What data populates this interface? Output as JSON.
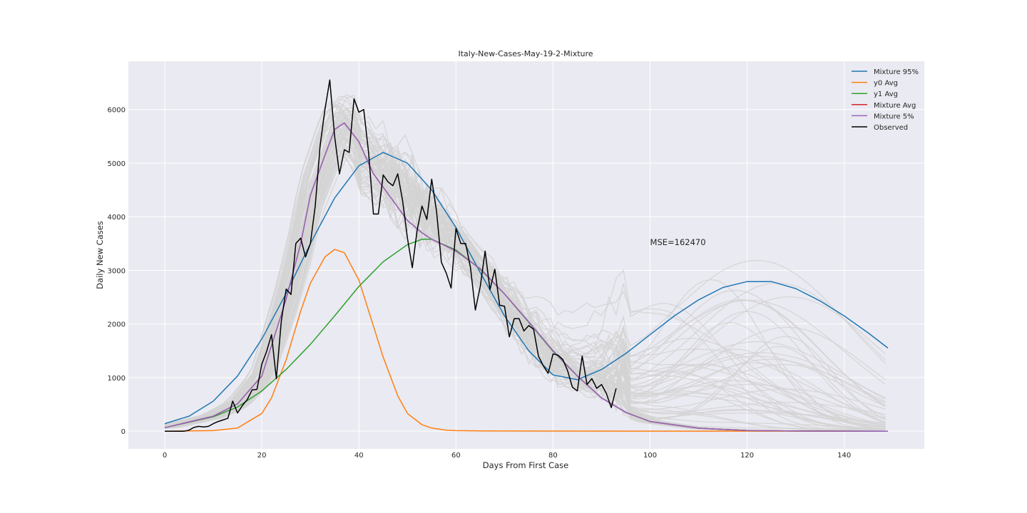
{
  "chart_data": {
    "type": "line",
    "title": "Italy-New-Cases-May-19-2-Mixture",
    "xlabel": "Days From First Case",
    "ylabel": "Daily New Cases",
    "xlim": [
      -7.5,
      156.5
    ],
    "ylim": [
      -330,
      6900
    ],
    "xticks": [
      0,
      20,
      40,
      60,
      80,
      100,
      120,
      140
    ],
    "yticks": [
      0,
      1000,
      2000,
      3000,
      4000,
      5000,
      6000
    ],
    "grid": true,
    "legend_position": "top-right",
    "annotation": "MSE=162470",
    "annotation_position": {
      "x": 100,
      "y": 3470
    },
    "sample_curves_color": "#d3d3d3",
    "series": [
      {
        "name": "Mixture 95%",
        "color": "#1f77b4",
        "x": [
          0,
          5,
          10,
          15,
          20,
          25,
          30,
          35,
          40,
          45,
          50,
          55,
          60,
          65,
          70,
          75,
          80,
          85,
          90,
          95,
          100,
          105,
          110,
          115,
          120,
          125,
          130,
          135,
          140,
          145,
          149
        ],
        "y": [
          140,
          280,
          560,
          1030,
          1720,
          2570,
          3500,
          4350,
          4950,
          5200,
          5000,
          4500,
          3800,
          2960,
          2150,
          1500,
          1050,
          960,
          1150,
          1450,
          1800,
          2150,
          2450,
          2680,
          2790,
          2790,
          2660,
          2430,
          2150,
          1830,
          1550
        ]
      },
      {
        "name": "y0 Avg",
        "color": "#ff7f0e",
        "x": [
          0,
          10,
          15,
          20,
          22,
          25,
          28,
          30,
          33,
          35,
          37,
          40,
          43,
          45,
          48,
          50,
          53,
          55,
          58,
          60,
          65,
          70,
          80,
          100,
          149
        ],
        "y": [
          0,
          10,
          60,
          330,
          620,
          1330,
          2240,
          2760,
          3250,
          3390,
          3330,
          2820,
          1960,
          1380,
          660,
          330,
          120,
          60,
          20,
          10,
          5,
          3,
          2,
          1,
          0
        ]
      },
      {
        "name": "y1 Avg",
        "color": "#2ca02c",
        "x": [
          0,
          10,
          15,
          20,
          25,
          30,
          35,
          40,
          45,
          50,
          53,
          55,
          60,
          65,
          70,
          75,
          80,
          85,
          90,
          95,
          100,
          110,
          120,
          130,
          149
        ],
        "y": [
          65,
          270,
          450,
          750,
          1150,
          1620,
          2150,
          2700,
          3160,
          3480,
          3580,
          3580,
          3380,
          3020,
          2560,
          2030,
          1490,
          1030,
          620,
          350,
          180,
          55,
          12,
          3,
          0
        ]
      },
      {
        "name": "Mixture Avg",
        "color": "#d62728",
        "x": [
          0,
          10,
          15,
          20,
          23,
          25,
          28,
          30,
          33,
          35,
          37,
          40,
          43,
          45,
          48,
          50,
          53,
          55,
          58,
          60,
          65,
          70,
          75,
          80,
          85,
          90,
          95,
          100,
          110,
          120,
          130,
          149
        ],
        "y": [
          65,
          280,
          510,
          1030,
          1880,
          2460,
          3500,
          4400,
          5150,
          5630,
          5750,
          5400,
          4800,
          4550,
          4180,
          3930,
          3700,
          3580,
          3450,
          3360,
          3030,
          2560,
          2040,
          1500,
          1030,
          620,
          350,
          180,
          55,
          12,
          3,
          0
        ]
      },
      {
        "name": "Mixture 5%",
        "color": "#9467bd",
        "x": [
          0,
          10,
          15,
          20,
          23,
          25,
          28,
          30,
          33,
          35,
          37,
          40,
          43,
          45,
          48,
          50,
          53,
          55,
          58,
          60,
          65,
          70,
          75,
          80,
          85,
          90,
          95,
          100,
          110,
          120,
          130,
          149
        ],
        "y": [
          65,
          280,
          510,
          1030,
          1880,
          2460,
          3500,
          4400,
          5150,
          5630,
          5750,
          5400,
          4800,
          4550,
          4180,
          3930,
          3700,
          3580,
          3450,
          3360,
          3030,
          2560,
          2040,
          1500,
          1030,
          620,
          350,
          180,
          55,
          12,
          3,
          0
        ]
      },
      {
        "name": "Observed",
        "color": "#000000",
        "x": [
          0,
          1,
          2,
          3,
          4,
          5,
          6,
          7,
          8,
          9,
          10,
          11,
          12,
          13,
          14,
          15,
          16,
          17,
          18,
          19,
          20,
          21,
          22,
          23,
          24,
          25,
          26,
          27,
          28,
          29,
          30,
          31,
          32,
          33,
          34,
          35,
          36,
          37,
          38,
          39,
          40,
          41,
          42,
          43,
          44,
          45,
          46,
          47,
          48,
          49,
          50,
          51,
          52,
          53,
          54,
          55,
          56,
          57,
          58,
          59,
          60,
          61,
          62,
          63,
          64,
          65,
          66,
          67,
          68,
          69,
          70,
          71,
          72,
          73,
          74,
          75,
          76,
          77,
          78,
          79,
          80,
          81,
          82,
          83,
          84,
          85,
          86,
          87,
          88,
          89,
          90,
          91,
          92,
          93
        ],
        "y": [
          0,
          0,
          0,
          0,
          0,
          20,
          70,
          90,
          80,
          90,
          140,
          180,
          210,
          240,
          560,
          340,
          480,
          590,
          770,
          780,
          1250,
          1490,
          1800,
          980,
          2050,
          2650,
          2550,
          3500,
          3600,
          3250,
          3500,
          4200,
          5320,
          6000,
          6550,
          5500,
          4800,
          5250,
          5200,
          6200,
          5950,
          6000,
          5200,
          4050,
          4050,
          4780,
          4650,
          4580,
          4800,
          4300,
          3600,
          3050,
          3750,
          4200,
          3950,
          4700,
          4100,
          3150,
          2950,
          2670,
          3780,
          3500,
          3500,
          3050,
          2260,
          2700,
          3360,
          2640,
          3020,
          2350,
          2330,
          1760,
          2100,
          2100,
          1870,
          1970,
          1900,
          1400,
          1220,
          1080,
          1440,
          1420,
          1340,
          1130,
          820,
          750,
          1400,
          870,
          980,
          800,
          870,
          700,
          440,
          800
        ]
      }
    ],
    "legend": [
      "Mixture 95%",
      "y0 Avg",
      "y1 Avg",
      "Mixture Avg",
      "Mixture 5%",
      "Observed"
    ]
  }
}
